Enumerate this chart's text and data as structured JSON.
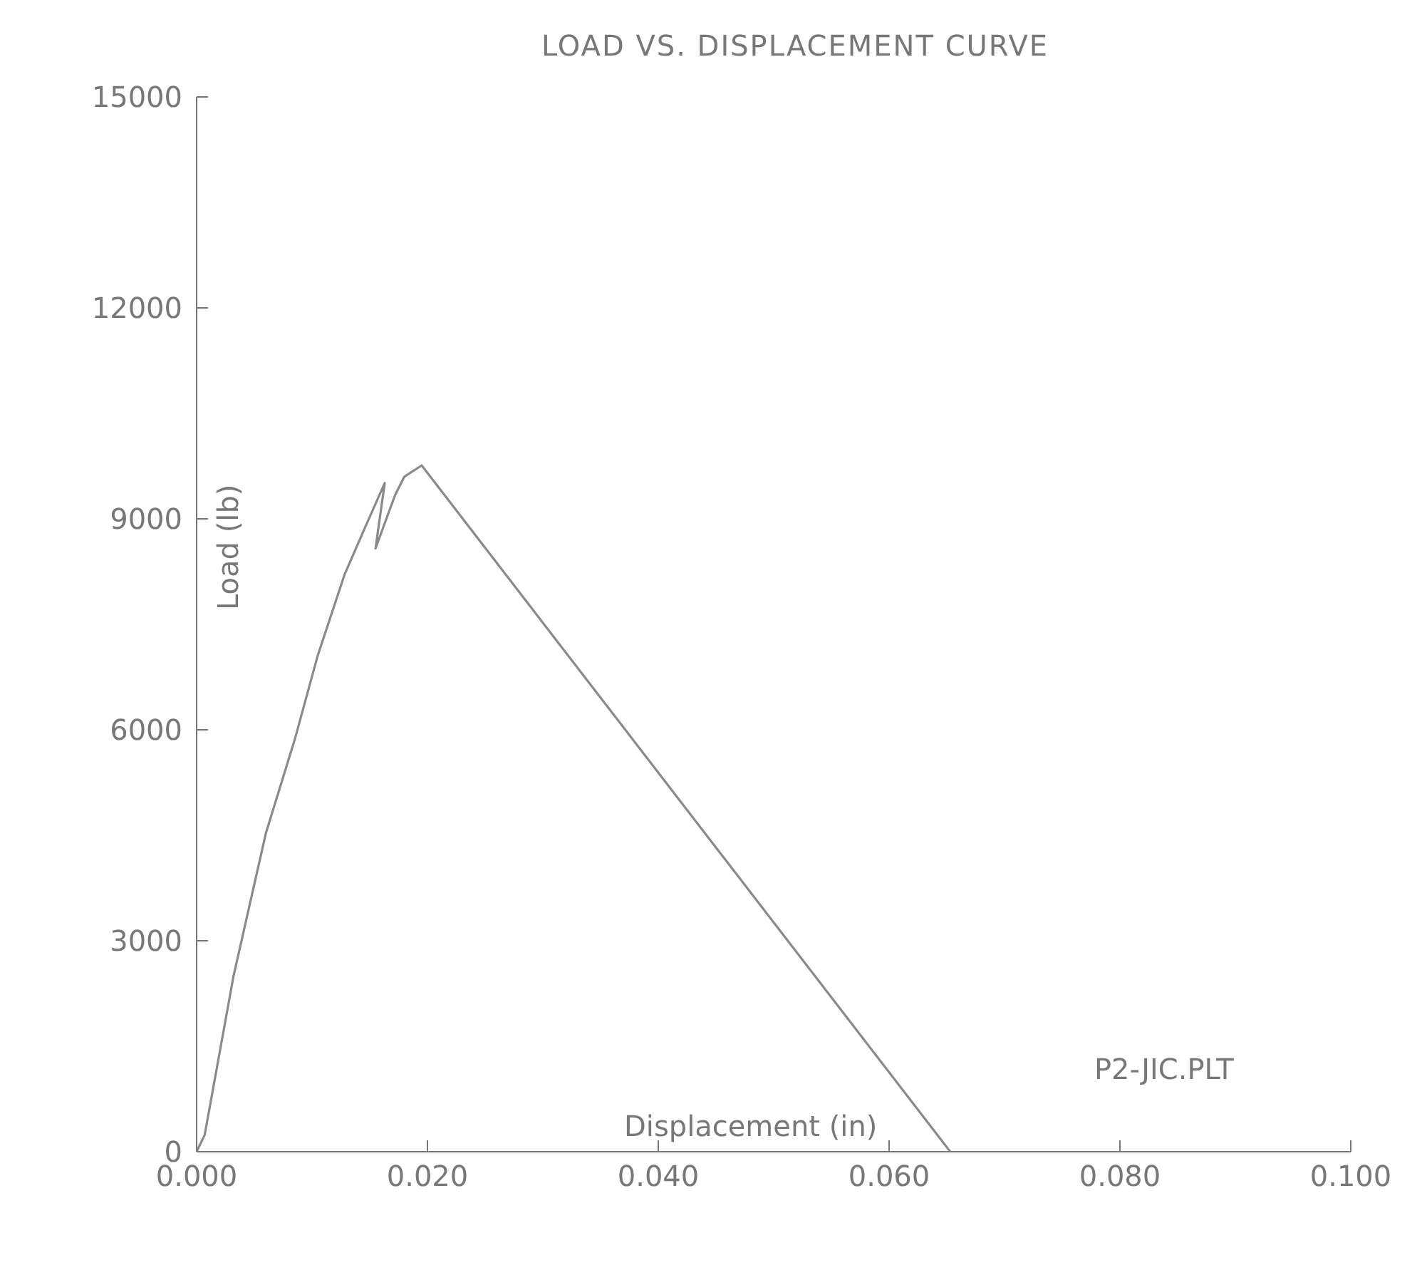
{
  "chart_data": {
    "type": "line",
    "title": "LOAD VS. DISPLACEMENT CURVE",
    "xlabel": "Displacement (in)",
    "ylabel": "Load (lb)",
    "annotations": [
      "P2-JIC.PLT"
    ],
    "series": [
      {
        "color": "#8a8a8a",
        "x": [
          0,
          0.0007,
          0.0032,
          0.006,
          0.0085,
          0.0105,
          0.0128,
          0.0146,
          0.0163,
          0.0155,
          0.0172,
          0.018,
          0.0195,
          0.0653
        ],
        "values": [
          0,
          240,
          2500,
          4530,
          5860,
          7060,
          8200,
          8880,
          9510,
          8580,
          9340,
          9600,
          9760,
          0
        ]
      }
    ],
    "xlim": [
      0,
      0.1
    ],
    "xticks": [
      {
        "value": 0,
        "label": "0.000"
      },
      {
        "value": 0.02,
        "label": "0.020"
      },
      {
        "value": 0.04,
        "label": "0.040"
      },
      {
        "value": 0.06,
        "label": "0.060"
      },
      {
        "value": 0.08,
        "label": "0.080"
      },
      {
        "value": 0.1,
        "label": "0.100"
      }
    ],
    "ylim": [
      0,
      15000
    ],
    "yticks": [
      0,
      3000,
      6000,
      9000,
      12000,
      15000
    ],
    "grid": false,
    "legend": false,
    "marker": "none",
    "line_style": "solid"
  }
}
